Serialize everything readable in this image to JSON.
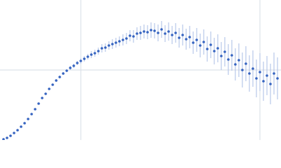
{
  "chart_data": {
    "type": "scatter",
    "x": [
      5,
      10,
      15,
      20,
      25,
      30,
      35,
      40,
      45,
      50,
      55,
      60,
      65,
      70,
      75,
      80,
      85,
      90,
      95,
      100,
      105,
      110,
      115,
      120,
      125,
      130,
      135,
      140,
      145,
      150,
      155,
      160,
      165,
      170,
      175,
      180,
      185,
      190,
      195,
      200,
      205,
      210,
      215,
      220,
      225,
      230,
      235,
      240,
      245,
      250,
      255,
      260,
      265,
      270,
      275,
      280,
      285,
      290,
      295,
      300,
      305,
      310,
      315,
      320,
      325,
      330,
      335,
      340,
      345,
      350,
      355,
      360,
      365,
      370,
      375,
      380,
      385,
      390,
      395
    ],
    "values": [
      1,
      3,
      6,
      10,
      14,
      19,
      24,
      30,
      37,
      44,
      52,
      60,
      66,
      73,
      79,
      85,
      90,
      95,
      99,
      103,
      106,
      110,
      113,
      116,
      119,
      122,
      124,
      127,
      131,
      132,
      135,
      137,
      139,
      141,
      143,
      145,
      149,
      148,
      152,
      153,
      155,
      154,
      157,
      156,
      153,
      158,
      152,
      155,
      150,
      153,
      146,
      150,
      144,
      147,
      139,
      143,
      135,
      140,
      130,
      136,
      127,
      131,
      120,
      126,
      115,
      121,
      108,
      114,
      100,
      109,
      95,
      102,
      88,
      97,
      84,
      92,
      80,
      95,
      88
    ],
    "errors": [
      0.5,
      0.5,
      0.5,
      0.5,
      0.5,
      0.5,
      0.5,
      0.5,
      0.5,
      0.5,
      0.5,
      0.5,
      1,
      1,
      1,
      2,
      2,
      2,
      2,
      3,
      3,
      3,
      4,
      4,
      4,
      5,
      5,
      5,
      6,
      6,
      6,
      7,
      7,
      7,
      8,
      8,
      8,
      9,
      9,
      10,
      10,
      10,
      11,
      11,
      12,
      12,
      12,
      13,
      13,
      14,
      14,
      15,
      15,
      16,
      16,
      17,
      17,
      18,
      18,
      19,
      19,
      20,
      20,
      21,
      22,
      22,
      23,
      24,
      25,
      25,
      26,
      26,
      27,
      27,
      28,
      28,
      29,
      30,
      30
    ],
    "color": "#3563c0",
    "error_color": "#a9bde6",
    "xlim": [
      0,
      400
    ],
    "ylim": [
      0,
      200
    ],
    "xticks": [
      115,
      370
    ],
    "yticks": [
      100
    ],
    "grid": true
  }
}
